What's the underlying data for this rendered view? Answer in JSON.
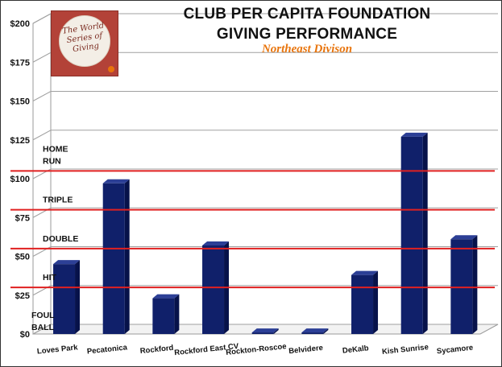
{
  "chart_data": {
    "type": "bar",
    "title": "CLUB PER CAPITA FOUNDATION",
    "title_line2": "GIVING PERFORMANCE",
    "subtitle": "Northeast Divison",
    "categories": [
      "Loves Park",
      "Pecatonica",
      "Rockford",
      "Rockford East CV",
      "Rockton-Roscoe",
      "Belvidere",
      "DeKalb",
      "Kish Sunrise",
      "Sycamore"
    ],
    "values": [
      45,
      97,
      23,
      57,
      1,
      1,
      38,
      127,
      61
    ],
    "ylim": [
      0,
      200
    ],
    "yticks": [
      0,
      25,
      50,
      75,
      100,
      125,
      150,
      175,
      200
    ],
    "ytick_labels": [
      "$0",
      "$25",
      "$50",
      "$75",
      "$100",
      "$125",
      "$150",
      "$175",
      "$200"
    ],
    "grid": true,
    "bar_color": "#10206a",
    "threshold_color": "#e02020",
    "thresholds": [
      {
        "label": "HOME RUN",
        "value": 105
      },
      {
        "label": "TRIPLE",
        "value": 80
      },
      {
        "label": "DOUBLE",
        "value": 55
      },
      {
        "label": "HIT",
        "value": 30
      },
      {
        "label": "FOUL BALL",
        "value": 0
      }
    ]
  },
  "logo": {
    "text": "The World Series of Giving",
    "background": "#b34238"
  }
}
